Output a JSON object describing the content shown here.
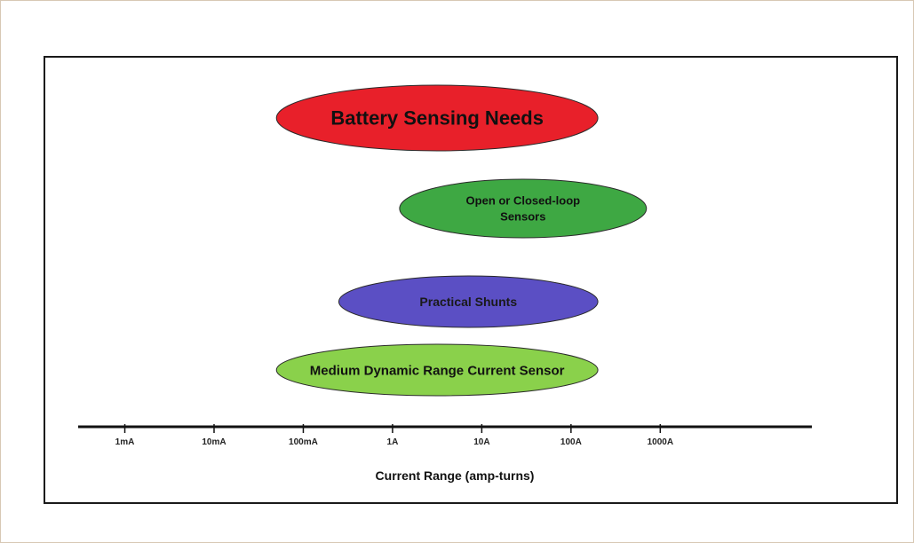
{
  "chart_data": {
    "type": "range",
    "xlabel": "Current Range (amp-turns)",
    "x_scale": "log",
    "tick_labels": [
      "1mA",
      "10mA",
      "100mA",
      "1A",
      "10A",
      "100A",
      "1000A"
    ],
    "tick_values_amps": [
      0.001,
      0.01,
      0.1,
      1,
      10,
      100,
      1000
    ],
    "xlim_amps": [
      0.0003,
      50000
    ],
    "ranges": [
      {
        "label": "Battery Sensing Needs",
        "min_amps": 0.05,
        "max_amps": 200,
        "color": "#e8202a"
      },
      {
        "label_lines": [
          "Open or Closed-loop",
          "Sensors"
        ],
        "min_amps": 1.2,
        "max_amps": 700,
        "color": "#3ea843"
      },
      {
        "label": "Practical Shunts",
        "min_amps": 0.25,
        "max_amps": 200,
        "color": "#5b4fc4"
      },
      {
        "label": "Medium Dynamic Range Current Sensor",
        "min_amps": 0.05,
        "max_amps": 200,
        "color": "#8ad14b"
      }
    ],
    "grid": false,
    "legend": "none"
  }
}
